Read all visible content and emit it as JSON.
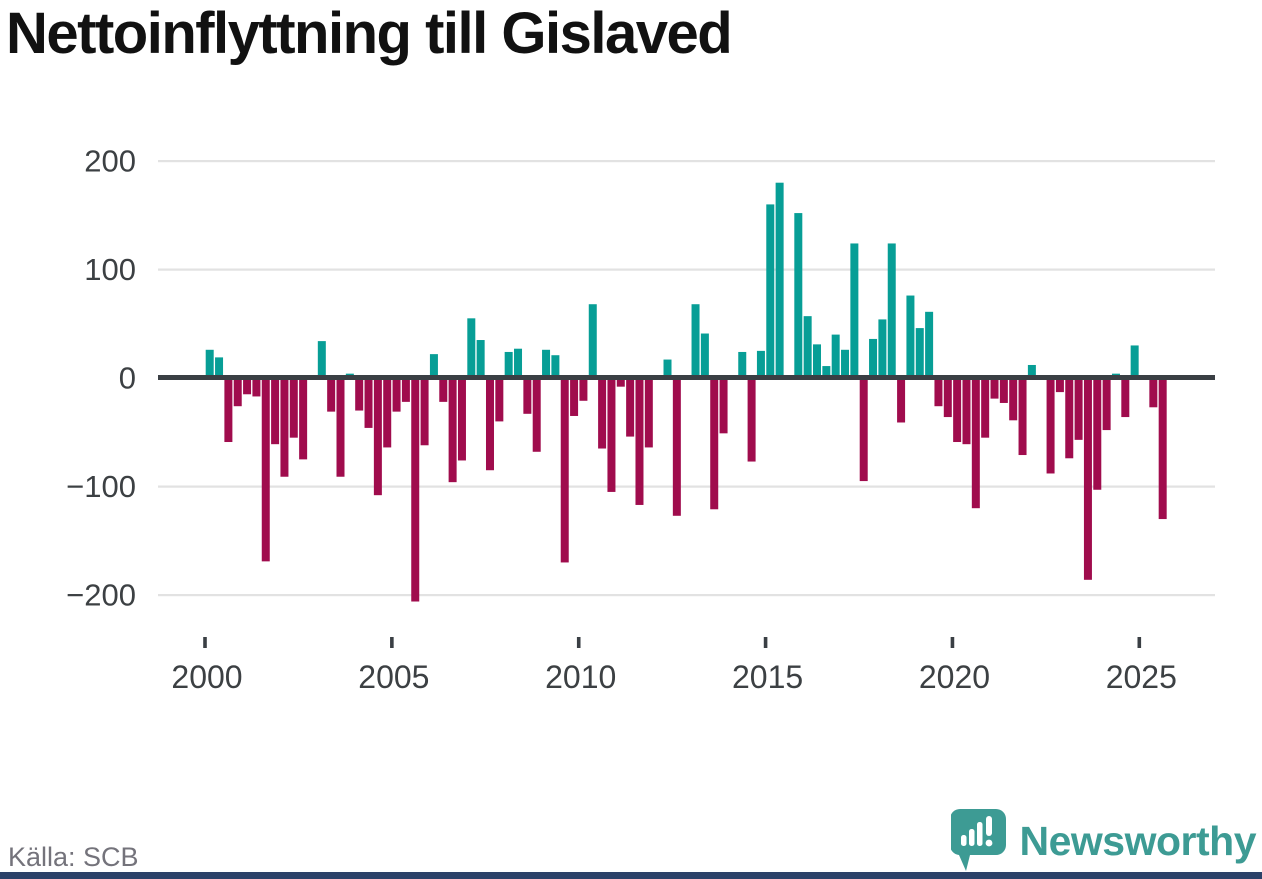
{
  "title": "Nettoinflyttning till Gislaved",
  "source": "Källa: SCB",
  "brand": {
    "name": "Newsworthy",
    "icon": "newsworthy-speech-bubble-chart-icon",
    "icon_color": "#3d9b94",
    "text_color": "#3d9b94",
    "bottom_bar_color": "#2b4168"
  },
  "chart_data": {
    "type": "bar",
    "title": "Nettoinflyttning till Gislaved",
    "ylabel": "",
    "xlabel": "",
    "frequency": "quarterly",
    "start": "2000-Q1",
    "end": "2025-Q3",
    "grid": true,
    "legend": "none",
    "y_ticks": [
      200,
      100,
      0,
      -100,
      -200
    ],
    "ylim": [
      -215,
      215
    ],
    "x_tick_labels": [
      "2000",
      "2005",
      "2010",
      "2015",
      "2020",
      "2025"
    ],
    "colors": {
      "positive": "#079e96",
      "negative": "#a00c4d",
      "zero_line": "#3a3f44",
      "gridline": "#e2e2e2",
      "axis_text": "#3c4043"
    },
    "values": [
      26,
      19,
      -59,
      -26,
      -15,
      -17,
      -169,
      -61,
      -91,
      -55,
      -75,
      0,
      34,
      -31,
      -91,
      4,
      -30,
      -46,
      -108,
      -64,
      -31,
      -22,
      -206,
      -62,
      22,
      -22,
      -96,
      -76,
      55,
      35,
      -85,
      -40,
      24,
      27,
      -33,
      -68,
      26,
      21,
      -170,
      -35,
      -21,
      68,
      -65,
      -105,
      -8,
      -54,
      -117,
      -64,
      0,
      17,
      -127,
      0,
      68,
      41,
      -121,
      -51,
      0,
      24,
      -77,
      25,
      160,
      180,
      0,
      152,
      57,
      31,
      11,
      40,
      26,
      124,
      -95,
      36,
      54,
      124,
      -41,
      76,
      46,
      61,
      -26,
      -36,
      -59,
      -61,
      -120,
      -55,
      -19,
      -23,
      -39,
      -71,
      12,
      0,
      -88,
      -13,
      -74,
      -57,
      -186,
      -103,
      -48,
      4,
      -36,
      30,
      0,
      -27,
      -130
    ]
  }
}
